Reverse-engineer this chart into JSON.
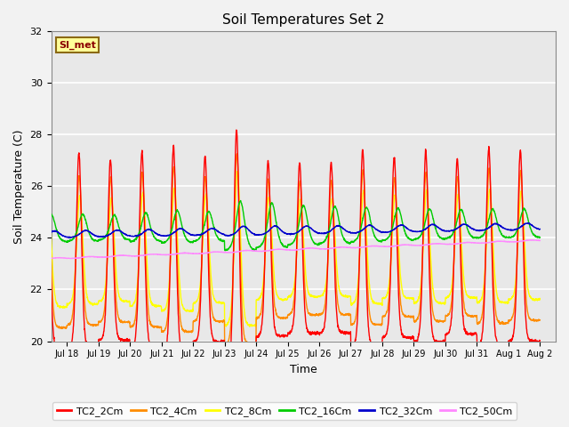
{
  "title": "Soil Temperatures Set 2",
  "xlabel": "Time",
  "ylabel": "Soil Temperature (C)",
  "ylim": [
    20,
    32
  ],
  "yticks": [
    20,
    22,
    24,
    26,
    28,
    30,
    32
  ],
  "xtick_labels": [
    "Jul 18",
    "Jul 19",
    "Jul 20",
    "Jul 21",
    "Jul 22",
    "Jul 23",
    "Jul 24",
    "Jul 25",
    "Jul 26",
    "Jul 27",
    "Jul 28",
    "Jul 29",
    "Jul 30",
    "Jul 31",
    "Aug 1",
    "Aug 2"
  ],
  "annotation_text": "SI_met",
  "annotation_color": "#8B0000",
  "annotation_bg": "#FFFF99",
  "annotation_border": "#8B6914",
  "series_colors": [
    "#FF0000",
    "#FF8C00",
    "#FFFF00",
    "#00CC00",
    "#0000CC",
    "#FF88FF"
  ],
  "series_labels": [
    "TC2_2Cm",
    "TC2_4Cm",
    "TC2_8Cm",
    "TC2_16Cm",
    "TC2_32Cm",
    "TC2_50Cm"
  ],
  "bg_color": "#E8E8E8",
  "plot_bg": "#E8E8E8",
  "fig_bg": "#F2F2F2",
  "grid_color": "#FFFFFF",
  "line_width": 1.0
}
